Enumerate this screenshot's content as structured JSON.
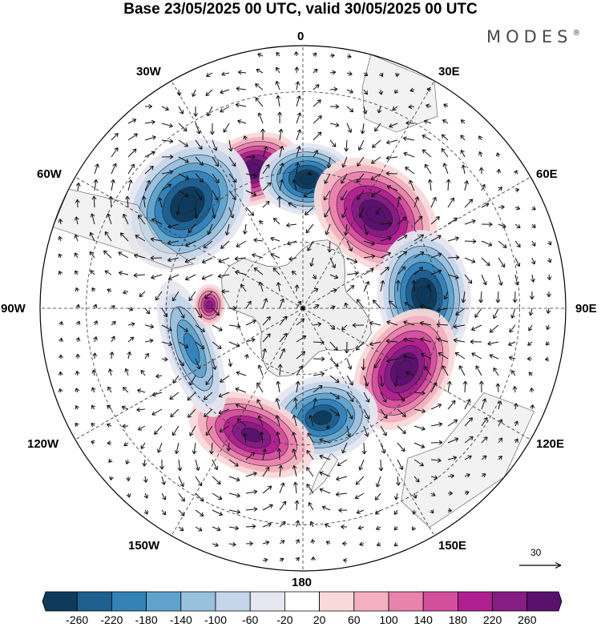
{
  "title": "Base 23/05/2025 00 UTC, valid 30/05/2025 00 UTC",
  "brand": "MODES",
  "brand_mark": "®",
  "map": {
    "projection": "south polar stereographic",
    "longitude_labels": {
      "top": "0",
      "top_right": "30E",
      "upper_right": "60E",
      "right": "90E",
      "lower_right": "120E",
      "bottom_right": "150E",
      "bottom": "180",
      "bottom_left": "150W",
      "lower_left": "120W",
      "left": "90W",
      "upper_left": "60W",
      "top_left": "30W"
    },
    "vector_scale_label": "30",
    "anomaly_centers": [
      {
        "name": "positive-center-south-atlantic",
        "sign": "positive",
        "lon": -20,
        "lat": -47,
        "peak": 260
      },
      {
        "name": "negative-center-argentina",
        "sign": "negative",
        "lon": -48,
        "lat": -45,
        "peak": -260
      },
      {
        "name": "negative-center-weddell",
        "sign": "negative",
        "lon": 2,
        "lat": -52,
        "peak": -260
      },
      {
        "name": "positive-center-south-africa",
        "sign": "positive",
        "lon": 38,
        "lat": -55,
        "peak": 260
      },
      {
        "name": "negative-center-south-indian",
        "sign": "negative",
        "lon": 84,
        "lat": -54,
        "peak": -260
      },
      {
        "name": "positive-center-south-australia",
        "sign": "positive",
        "lon": 121,
        "lat": -55,
        "peak": 260
      },
      {
        "name": "negative-center-ross-sea",
        "sign": "negative",
        "lon": 170,
        "lat": -57,
        "peak": -240
      },
      {
        "name": "positive-center-south-pacific",
        "sign": "positive",
        "lon": -158,
        "lat": -50,
        "peak": 220
      },
      {
        "name": "negative-center-amundsen",
        "sign": "negative",
        "lon": -110,
        "lat": -55,
        "peak": -140
      },
      {
        "name": "positive-center-bellingshausen",
        "sign": "positive",
        "lon": -88,
        "lat": -62,
        "peak": 180
      }
    ]
  },
  "colorbar": {
    "colors": [
      "#0e3a5c",
      "#1d5f8e",
      "#3382b8",
      "#5fa2cc",
      "#99c0de",
      "#c4d5ea",
      "#e5e6f0",
      "#ffffff",
      "#f9d9d9",
      "#f3b0bf",
      "#e982ad",
      "#d34f9e",
      "#b01f8f",
      "#861c84",
      "#5a116e"
    ],
    "labels": [
      "-260",
      "-220",
      "-180",
      "-140",
      "-100",
      "-60",
      "-20",
      "20",
      "60",
      "100",
      "140",
      "180",
      "220",
      "260"
    ]
  }
}
